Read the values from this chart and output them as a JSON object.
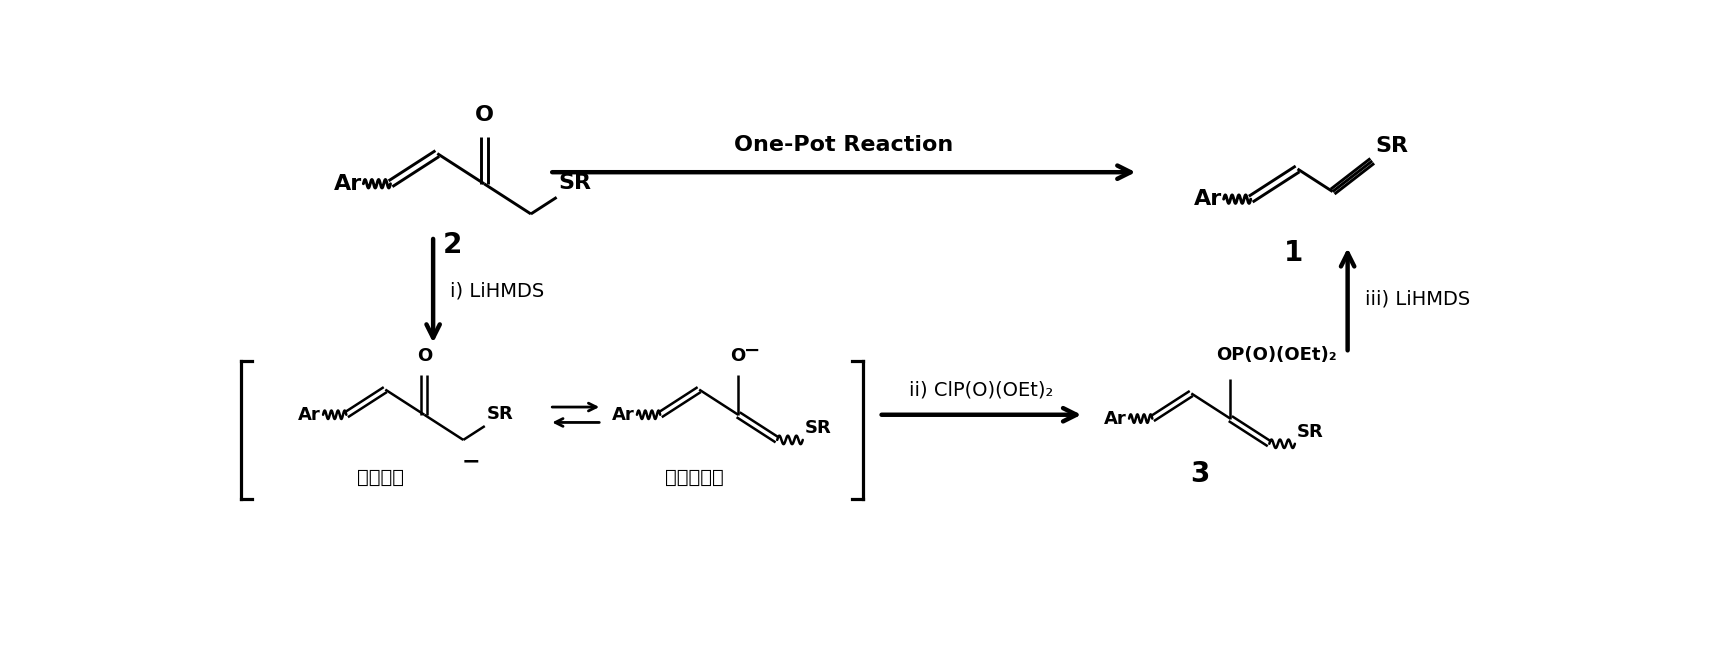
{
  "bg": "#ffffff",
  "top_arrow_label": "One-Pot Reaction",
  "left_arrow_label": "i) LiHMDS",
  "right_arrow_label": "iii) LiHMDS",
  "bottom_arrow_label": "ii) ClP(O)(OEt)₂",
  "label_2": "2",
  "label_1": "1",
  "label_3": "3",
  "carbanion": "碳负离子",
  "enolate": "烯醇负离子"
}
